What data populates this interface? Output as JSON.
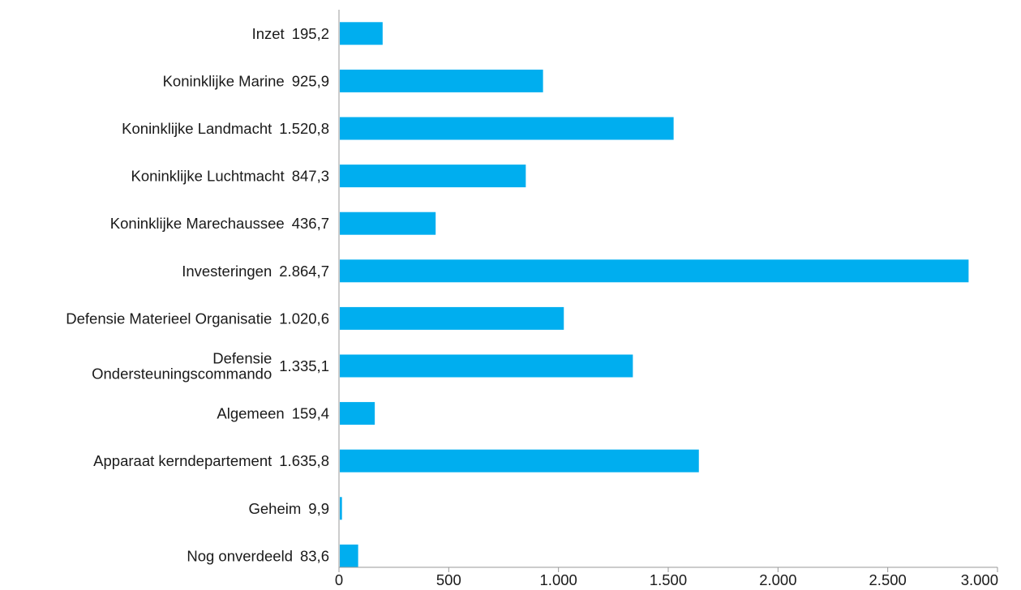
{
  "chart_data": {
    "type": "bar",
    "orientation": "horizontal",
    "categories": [
      "Inzet",
      "Koninklijke Marine",
      "Koninklijke Landmacht",
      "Koninklijke Luchtmacht",
      "Koninklijke Marechaussee",
      "Investeringen",
      "Defensie Materieel Organisatie",
      "Defensie Ondersteuningscommando",
      "Algemeen",
      "Apparaat kerndepartement",
      "Geheim",
      "Nog onverdeeld"
    ],
    "category_lines": [
      [
        "Inzet"
      ],
      [
        "Koninklijke Marine"
      ],
      [
        "Koninklijke Landmacht"
      ],
      [
        "Koninklijke Luchtmacht"
      ],
      [
        "Koninklijke Marechaussee"
      ],
      [
        "Investeringen"
      ],
      [
        "Defensie Materieel Organisatie"
      ],
      [
        "Defensie",
        "Ondersteuningscommando"
      ],
      [
        "Algemeen"
      ],
      [
        "Apparaat kerndepartement"
      ],
      [
        "Geheim"
      ],
      [
        "Nog onverdeeld"
      ]
    ],
    "values": [
      195.2,
      925.9,
      1520.8,
      847.3,
      436.7,
      2864.7,
      1020.6,
      1335.1,
      159.4,
      1635.8,
      9.9,
      83.6
    ],
    "value_labels": [
      "195,2",
      "925,9",
      "1.520,8",
      "847,3",
      "436,7",
      "2.864,7",
      "1.020,6",
      "1.335,1",
      "159,4",
      "1.635,8",
      "9,9",
      "83,6"
    ],
    "xlim": [
      0,
      3000
    ],
    "ticks": [
      0,
      500,
      1000,
      1500,
      2000,
      2500,
      3000
    ],
    "tick_labels": [
      "0",
      "500",
      "1.000",
      "1.500",
      "2.000",
      "2.500",
      "3.000"
    ],
    "title": "",
    "xlabel": "",
    "ylabel": "",
    "grid": false,
    "legend": "none",
    "bar_color": "#00aeef",
    "axis_color": "#999999"
  }
}
